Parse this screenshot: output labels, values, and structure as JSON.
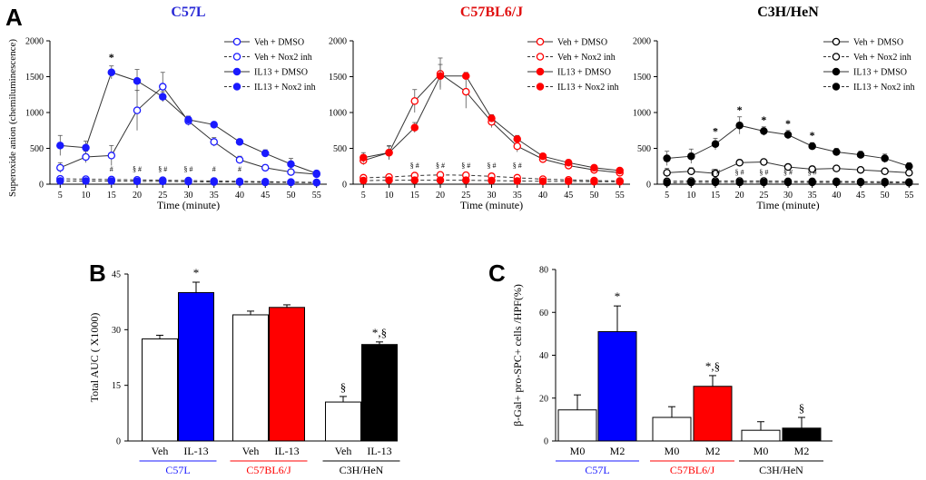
{
  "figure": {
    "panel_a_letter": "A",
    "panel_b_letter": "B",
    "panel_c_letter": "C"
  },
  "colors": {
    "blue": "#1a1aff",
    "red": "#ff0000",
    "black": "#000000",
    "c57l_title": "#2a2ad6",
    "c57bl_title": "#e01010"
  },
  "chart_data": [
    {
      "type": "line",
      "panel": "A",
      "title": "C57L",
      "xlabel": "Time (minute)",
      "ylabel": "Superoxide anion (chemiluminescence)",
      "x": [
        5,
        10,
        15,
        20,
        25,
        30,
        35,
        40,
        45,
        50,
        55
      ],
      "xlim": [
        3,
        57
      ],
      "ylim": [
        0,
        2000
      ],
      "yticks": [
        0,
        500,
        1000,
        1500,
        2000
      ],
      "legend_position": "top-right",
      "color": "#1a1aff",
      "series": [
        {
          "name": "Veh + DMSO",
          "values": [
            230,
            380,
            400,
            1030,
            1360,
            880,
            590,
            340,
            230,
            170,
            140
          ],
          "errors": [
            70,
            80,
            140,
            280,
            200,
            60,
            60,
            50,
            40,
            40,
            30
          ],
          "filled": false,
          "dashed": false
        },
        {
          "name": "Veh + Nox2 inh",
          "values": [
            75,
            70,
            65,
            60,
            55,
            50,
            45,
            40,
            35,
            30,
            25
          ],
          "errors": [
            15,
            10,
            10,
            10,
            10,
            10,
            10,
            10,
            10,
            10,
            10
          ],
          "filled": false,
          "dashed": true
        },
        {
          "name": "IL13 + DMSO",
          "values": [
            540,
            510,
            1560,
            1440,
            1220,
            900,
            830,
            590,
            430,
            280,
            150
          ],
          "errors": [
            140,
            90,
            90,
            160,
            70,
            50,
            30,
            30,
            50,
            80,
            40
          ],
          "filled": true,
          "dashed": false
        },
        {
          "name": "IL13 + Nox2 inh",
          "values": [
            45,
            45,
            45,
            40,
            40,
            35,
            30,
            30,
            25,
            25,
            20
          ],
          "errors": [
            10,
            10,
            10,
            10,
            10,
            10,
            10,
            10,
            10,
            10,
            10
          ],
          "filled": true,
          "dashed": true
        }
      ],
      "annotations": [
        {
          "x": 15,
          "y": 1720,
          "text": "*"
        },
        {
          "x": 15,
          "y": 180,
          "text": "#"
        },
        {
          "x": 20,
          "y": 180,
          "text": "§ #"
        },
        {
          "x": 25,
          "y": 180,
          "text": "§ #"
        },
        {
          "x": 30,
          "y": 180,
          "text": "§ #"
        },
        {
          "x": 35,
          "y": 180,
          "text": "#"
        },
        {
          "x": 40,
          "y": 180,
          "text": "#"
        }
      ]
    },
    {
      "type": "line",
      "panel": "A",
      "title": "C57BL6/J",
      "xlabel": "Time (minute)",
      "ylabel": "",
      "x": [
        5,
        10,
        15,
        20,
        25,
        30,
        35,
        40,
        45,
        50,
        55
      ],
      "xlim": [
        3,
        57
      ],
      "ylim": [
        0,
        2000
      ],
      "yticks": [
        0,
        500,
        1000,
        1500,
        2000
      ],
      "legend_position": "top-right",
      "color": "#ff0000",
      "series": [
        {
          "name": "Veh + DMSO",
          "values": [
            330,
            440,
            1160,
            1540,
            1290,
            870,
            530,
            350,
            260,
            200,
            160
          ],
          "errors": [
            60,
            90,
            160,
            220,
            230,
            80,
            80,
            40,
            30,
            30,
            30
          ],
          "filled": false,
          "dashed": false
        },
        {
          "name": "Veh + Nox2 inh",
          "values": [
            90,
            100,
            120,
            130,
            125,
            110,
            90,
            70,
            60,
            50,
            45
          ],
          "errors": [
            15,
            15,
            20,
            20,
            20,
            20,
            15,
            10,
            10,
            10,
            10
          ],
          "filled": false,
          "dashed": true
        },
        {
          "name": "IL13 + DMSO",
          "values": [
            370,
            440,
            790,
            1510,
            1510,
            920,
            630,
            390,
            300,
            230,
            190
          ],
          "errors": [
            70,
            100,
            70,
            160,
            50,
            50,
            50,
            30,
            40,
            30,
            30
          ],
          "filled": true,
          "dashed": false
        },
        {
          "name": "IL13 + Nox2 inh",
          "values": [
            50,
            55,
            55,
            55,
            55,
            50,
            45,
            40,
            40,
            35,
            35
          ],
          "errors": [
            10,
            10,
            10,
            10,
            10,
            10,
            10,
            10,
            10,
            10,
            10
          ],
          "filled": true,
          "dashed": true
        }
      ],
      "annotations": [
        {
          "x": 15,
          "y": 230,
          "text": "§ #"
        },
        {
          "x": 20,
          "y": 230,
          "text": "§ #"
        },
        {
          "x": 25,
          "y": 230,
          "text": "§ #"
        },
        {
          "x": 30,
          "y": 230,
          "text": "§ #"
        },
        {
          "x": 35,
          "y": 230,
          "text": "§ #"
        }
      ]
    },
    {
      "type": "line",
      "panel": "A",
      "title": "C3H/HeN",
      "xlabel": "Time (minute)",
      "ylabel": "",
      "x": [
        5,
        10,
        15,
        20,
        25,
        30,
        35,
        40,
        45,
        50,
        55
      ],
      "xlim": [
        3,
        57
      ],
      "ylim": [
        0,
        2000
      ],
      "yticks": [
        0,
        500,
        1000,
        1500,
        2000
      ],
      "legend_position": "top-right",
      "color": "#000000",
      "series": [
        {
          "name": "Veh + DMSO",
          "values": [
            160,
            180,
            150,
            300,
            310,
            240,
            210,
            220,
            200,
            180,
            160
          ],
          "errors": [
            60,
            50,
            60,
            40,
            30,
            30,
            40,
            30,
            30,
            30,
            30
          ],
          "filled": false,
          "dashed": false
        },
        {
          "name": "Veh + Nox2 inh",
          "values": [
            40,
            45,
            45,
            45,
            45,
            40,
            40,
            40,
            35,
            35,
            30
          ],
          "errors": [
            10,
            10,
            10,
            10,
            10,
            10,
            10,
            10,
            10,
            10,
            10
          ],
          "filled": false,
          "dashed": true
        },
        {
          "name": "IL13 + DMSO",
          "values": [
            360,
            390,
            560,
            820,
            740,
            690,
            530,
            450,
            410,
            360,
            250
          ],
          "errors": [
            100,
            100,
            80,
            120,
            60,
            60,
            50,
            50,
            50,
            60,
            50
          ],
          "filled": true,
          "dashed": false
        },
        {
          "name": "IL13 + Nox2 inh",
          "values": [
            20,
            25,
            25,
            25,
            25,
            25,
            25,
            25,
            25,
            20,
            20
          ],
          "errors": [
            10,
            10,
            10,
            10,
            10,
            10,
            10,
            10,
            10,
            10,
            10
          ],
          "filled": true,
          "dashed": true
        }
      ],
      "annotations": [
        {
          "x": 15,
          "y": 690,
          "text": "*"
        },
        {
          "x": 20,
          "y": 990,
          "text": "*"
        },
        {
          "x": 25,
          "y": 850,
          "text": "*"
        },
        {
          "x": 30,
          "y": 800,
          "text": "*"
        },
        {
          "x": 35,
          "y": 630,
          "text": "*"
        },
        {
          "x": 15,
          "y": 130,
          "text": "§ #"
        },
        {
          "x": 20,
          "y": 130,
          "text": "§ #"
        },
        {
          "x": 25,
          "y": 130,
          "text": "§ #"
        },
        {
          "x": 30,
          "y": 130,
          "text": "§ #"
        },
        {
          "x": 35,
          "y": 130,
          "text": "§ #"
        }
      ]
    },
    {
      "type": "bar",
      "panel": "B",
      "xlabel": "",
      "ylabel": "Total AUC ( X1000)",
      "ylim": [
        0,
        45
      ],
      "yticks": [
        0,
        15,
        30,
        45
      ],
      "groups": [
        "C57L",
        "C57BL6/J",
        "C3H/HeN"
      ],
      "group_colors": [
        "#1a1aff",
        "#ff0000",
        "#000000"
      ],
      "categories": [
        "Veh",
        "IL-13",
        "Veh",
        "IL-13",
        "Veh",
        "IL-13"
      ],
      "values": [
        27.5,
        40,
        34,
        36,
        10.5,
        26
      ],
      "errors": [
        1,
        2.8,
        1,
        0.7,
        1.5,
        0.7
      ],
      "bar_colors": [
        "#ffffff",
        "#0000ff",
        "#ffffff",
        "#ff0000",
        "#ffffff",
        "#000000"
      ],
      "annotations": [
        "",
        "*",
        "",
        "",
        "§",
        "*,§"
      ]
    },
    {
      "type": "bar",
      "panel": "C",
      "xlabel": "",
      "ylabel": "β-Gal+ pro-SPC+ cells /HPF(%)",
      "ylim": [
        0,
        80
      ],
      "yticks": [
        0,
        20,
        40,
        60,
        80
      ],
      "groups": [
        "C57L",
        "C57BL6/J",
        "C3H/HeN"
      ],
      "group_colors": [
        "#1a1aff",
        "#ff0000",
        "#000000"
      ],
      "categories": [
        "M0",
        "M2",
        "M0",
        "M2",
        "M0",
        "M2"
      ],
      "values": [
        14.5,
        51,
        11,
        25.5,
        5,
        6
      ],
      "errors": [
        7,
        12,
        5,
        5,
        4,
        5
      ],
      "bar_colors": [
        "#ffffff",
        "#0000ff",
        "#ffffff",
        "#ff0000",
        "#ffffff",
        "#000000"
      ],
      "annotations": [
        "",
        "*",
        "",
        "*,§",
        "",
        "§"
      ]
    }
  ]
}
